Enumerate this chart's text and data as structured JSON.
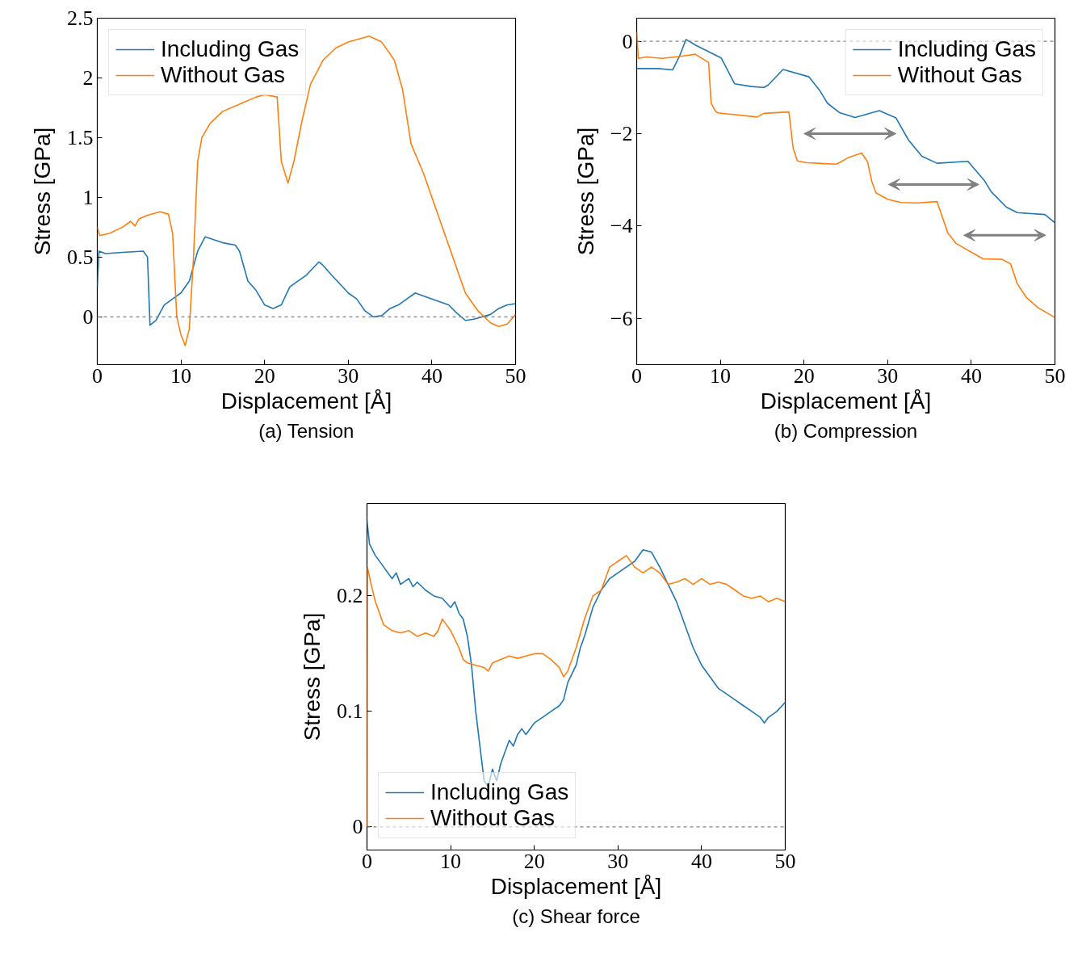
{
  "chart_data": [
    {
      "type": "line",
      "title": "(a) Tension",
      "xlabel": "Displacement [Å]",
      "ylabel": "Stress [GPa]",
      "legend": "top left",
      "grid": false,
      "marker": "none",
      "line_style": "solid",
      "xlim": [
        0,
        50
      ],
      "ylim": [
        -0.4,
        2.5
      ],
      "xticks": [
        0,
        10,
        20,
        30,
        40,
        50
      ],
      "yticks": [
        0,
        0.5,
        1,
        1.5,
        2,
        2.5
      ],
      "ref_lines": [
        {
          "axis": "y",
          "value": 0,
          "label": null,
          "color": "#808080",
          "line_style": "dashed"
        }
      ],
      "series": [
        {
          "name": "Including Gas",
          "color": "#1f77b4",
          "x": [
            0,
            0.2,
            1,
            3,
            5.5,
            6,
            6.3,
            7,
            8,
            9,
            10,
            11,
            12,
            12.9,
            15,
            16.5,
            17,
            18,
            19,
            20,
            21,
            22,
            23,
            24,
            25,
            26.5,
            27,
            28,
            30,
            31,
            32,
            33,
            34,
            35,
            36,
            38,
            40,
            42,
            43,
            44,
            45,
            47,
            48,
            49,
            50
          ],
          "values": [
            0.25,
            0.55,
            0.53,
            0.54,
            0.55,
            0.5,
            -0.07,
            -0.03,
            0.1,
            0.15,
            0.2,
            0.3,
            0.55,
            0.67,
            0.62,
            0.6,
            0.55,
            0.3,
            0.22,
            0.1,
            0.07,
            0.1,
            0.25,
            0.3,
            0.35,
            0.46,
            0.43,
            0.35,
            0.2,
            0.15,
            0.05,
            0.0,
            0.01,
            0.07,
            0.1,
            0.2,
            0.15,
            0.1,
            0.03,
            -0.03,
            -0.02,
            0.02,
            0.07,
            0.1,
            0.11
          ]
        },
        {
          "name": "Without Gas",
          "color": "#ff7f0e",
          "x": [
            0,
            0.3,
            1.5,
            3,
            4,
            4.5,
            5,
            6,
            7.5,
            8.5,
            9,
            9.5,
            10,
            10.5,
            11,
            11.5,
            12,
            12.5,
            13.5,
            15,
            17,
            19,
            20,
            21.5,
            22,
            22.8,
            23.5,
            24.5,
            25.5,
            27,
            28.5,
            30,
            32.5,
            34,
            35.5,
            36.5,
            37.5,
            39,
            41,
            43,
            44,
            45.5,
            47,
            48,
            49,
            50
          ],
          "values": [
            0.75,
            0.68,
            0.7,
            0.75,
            0.8,
            0.76,
            0.82,
            0.85,
            0.88,
            0.86,
            0.7,
            0.0,
            -0.15,
            -0.24,
            -0.1,
            0.5,
            1.3,
            1.5,
            1.62,
            1.72,
            1.78,
            1.84,
            1.86,
            1.84,
            1.3,
            1.12,
            1.3,
            1.65,
            1.95,
            2.15,
            2.25,
            2.3,
            2.35,
            2.3,
            2.15,
            1.9,
            1.45,
            1.2,
            0.8,
            0.4,
            0.2,
            0.05,
            -0.05,
            -0.08,
            -0.06,
            0.02
          ]
        }
      ]
    },
    {
      "type": "line",
      "title": "(b) Compression",
      "xlabel": "Displacement [Å]",
      "ylabel": "Stress [GPa]",
      "legend": "top right",
      "grid": false,
      "marker": "none",
      "line_style": "solid",
      "xlim": [
        0,
        50
      ],
      "ylim": [
        -7,
        0.5
      ],
      "xticks": [
        0,
        10,
        20,
        30,
        40,
        50
      ],
      "yticks": [
        {
          "value": -6,
          "label": "−6"
        },
        {
          "value": -4,
          "label": "−4"
        },
        {
          "value": -2,
          "label": "−2"
        },
        0
      ],
      "ref_lines": [
        {
          "axis": "y",
          "value": 0,
          "label": null,
          "color": "#808080",
          "line_style": "dashed"
        }
      ],
      "series": [
        {
          "name": "Including Gas",
          "color": "#1f77b4",
          "x": [
            0,
            2.5,
            4.3,
            5.1,
            5.9,
            7.1,
            10.1,
            11.7,
            13.7,
            15.2,
            15.7,
            17.5,
            20.6,
            21.9,
            22.8,
            24.2,
            26.1,
            29.0,
            31.0,
            32.5,
            34.1,
            35.9,
            39.6,
            41.5,
            42.4,
            44.2,
            45.5,
            48.8,
            50
          ],
          "values": [
            -0.59,
            -0.59,
            -0.62,
            -0.33,
            0.04,
            -0.09,
            -0.36,
            -0.92,
            -0.98,
            -1.0,
            -0.95,
            -0.61,
            -0.77,
            -1.07,
            -1.34,
            -1.54,
            -1.65,
            -1.5,
            -1.66,
            -2.14,
            -2.49,
            -2.64,
            -2.6,
            -3.0,
            -3.26,
            -3.59,
            -3.71,
            -3.75,
            -3.93
          ]
        },
        {
          "name": "Without Gas",
          "color": "#ff7f0e",
          "x": [
            0,
            0.2,
            1.2,
            3,
            5.1,
            7.0,
            8.6,
            8.9,
            9.4,
            9.7,
            14.4,
            15.2,
            18.2,
            18.7,
            19.2,
            20.3,
            23.9,
            25.4,
            26.9,
            27.6,
            28.1,
            28.6,
            30.0,
            31.6,
            33.6,
            35.9,
            37.2,
            38.2,
            41.4,
            43.7,
            44.7,
            45.5,
            46.6,
            48.0,
            50
          ],
          "values": [
            0.2,
            -0.37,
            -0.34,
            -0.37,
            -0.33,
            -0.28,
            -0.46,
            -1.34,
            -1.51,
            -1.55,
            -1.64,
            -1.56,
            -1.53,
            -2.31,
            -2.59,
            -2.63,
            -2.66,
            -2.51,
            -2.42,
            -2.61,
            -3.03,
            -3.28,
            -3.42,
            -3.49,
            -3.5,
            -3.47,
            -4.15,
            -4.38,
            -4.71,
            -4.72,
            -4.82,
            -5.25,
            -5.55,
            -5.77,
            -5.98
          ]
        }
      ]
    },
    {
      "type": "line",
      "title": "(c) Shear force",
      "xlabel": "Displacement [Å]",
      "ylabel": "Stress [GPa]",
      "legend": "bottom left",
      "grid": false,
      "marker": "none",
      "line_style": "solid",
      "xlim": [
        0,
        50
      ],
      "ylim": [
        -0.02,
        0.28
      ],
      "xticks": [
        0,
        10,
        20,
        30,
        40,
        50
      ],
      "yticks": [
        0,
        0.1,
        0.2
      ],
      "ref_lines": [
        {
          "axis": "y",
          "value": 0,
          "label": null,
          "color": "#808080",
          "line_style": "dashed"
        }
      ],
      "series": [
        {
          "name": "Including Gas",
          "color": "#1f77b4",
          "x": [
            0,
            0.3,
            1,
            2,
            3,
            3.5,
            4,
            5,
            5.5,
            6,
            7,
            8,
            9,
            10,
            10.5,
            11,
            11.5,
            12,
            12.5,
            13,
            13.5,
            14,
            14.5,
            15,
            15.5,
            16,
            16.5,
            17,
            17.5,
            18,
            18.5,
            19,
            20,
            21,
            22,
            23,
            23.5,
            24,
            25,
            25.5,
            26,
            27,
            28,
            29,
            30,
            31,
            32,
            33,
            34,
            35,
            36,
            37,
            38,
            39,
            40,
            41,
            42,
            43,
            44,
            45,
            46,
            47,
            47.5,
            48,
            49,
            50
          ],
          "values": [
            0.265,
            0.245,
            0.235,
            0.225,
            0.215,
            0.22,
            0.21,
            0.215,
            0.208,
            0.212,
            0.205,
            0.2,
            0.198,
            0.19,
            0.195,
            0.185,
            0.18,
            0.165,
            0.14,
            0.1,
            0.07,
            0.04,
            0.035,
            0.05,
            0.04,
            0.055,
            0.065,
            0.075,
            0.07,
            0.08,
            0.085,
            0.08,
            0.09,
            0.095,
            0.1,
            0.105,
            0.11,
            0.125,
            0.14,
            0.155,
            0.165,
            0.19,
            0.205,
            0.215,
            0.22,
            0.225,
            0.23,
            0.24,
            0.238,
            0.225,
            0.21,
            0.195,
            0.175,
            0.155,
            0.14,
            0.13,
            0.12,
            0.115,
            0.11,
            0.105,
            0.1,
            0.095,
            0.09,
            0.095,
            0.1,
            0.108
          ]
        },
        {
          "name": "Without Gas",
          "color": "#ff7f0e",
          "x": [
            0,
            0.05,
            0.5,
            1,
            1.5,
            2,
            3,
            4,
            5,
            6,
            7,
            8,
            8.5,
            9,
            9.5,
            10,
            11,
            11.5,
            12,
            13,
            14,
            14.5,
            15,
            16,
            17,
            18,
            19,
            20,
            21,
            22,
            23,
            23.5,
            24,
            25,
            26,
            27,
            28,
            29,
            30,
            31,
            32,
            33,
            34,
            35,
            36,
            37,
            38,
            39,
            40,
            41,
            42,
            43,
            44,
            45,
            46,
            47,
            48,
            49,
            50
          ],
          "values": [
            0.0,
            0.225,
            0.21,
            0.195,
            0.185,
            0.175,
            0.17,
            0.168,
            0.17,
            0.165,
            0.168,
            0.165,
            0.17,
            0.18,
            0.175,
            0.17,
            0.155,
            0.145,
            0.142,
            0.14,
            0.138,
            0.135,
            0.142,
            0.145,
            0.148,
            0.146,
            0.148,
            0.15,
            0.15,
            0.145,
            0.138,
            0.13,
            0.135,
            0.155,
            0.18,
            0.2,
            0.205,
            0.225,
            0.23,
            0.235,
            0.225,
            0.22,
            0.225,
            0.22,
            0.21,
            0.212,
            0.215,
            0.21,
            0.215,
            0.21,
            0.212,
            0.21,
            0.205,
            0.2,
            0.198,
            0.2,
            0.195,
            0.198,
            0.195
          ]
        }
      ]
    }
  ]
}
